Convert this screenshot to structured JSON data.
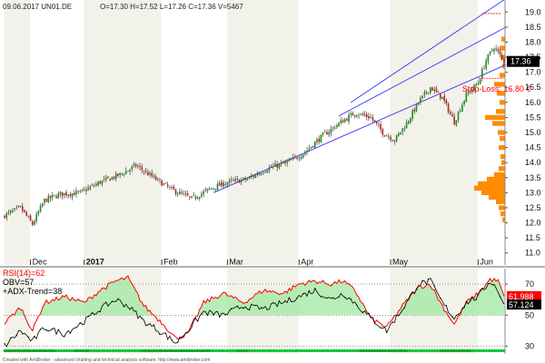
{
  "header": {
    "text": "09.06.2017 UN01.DE",
    "ohlc": "O=17.30  H=17.52  L=17.26  C=17.36  V=5467"
  },
  "footer": "Created with AmiBroker - advanced charting and technical analysis software. http://www.amibroker.com",
  "colors": {
    "up": "#1f8a1f",
    "down": "#c41e1e",
    "channel": "#3333ff",
    "stop": "#ff0000",
    "volume_profile": "#ff8c00",
    "rsi": "#ff0000",
    "obv": "#000000",
    "band_light": "#ffffff",
    "band_dark": "#f2f2ea",
    "last_price_bg": "#000000",
    "rsi_label_bg": "#ff0000",
    "obv_label_bg": "#000000"
  },
  "chart_data": [
    {
      "type": "candlestick",
      "title": "09.06.2017 UN01.DE",
      "x_labels": [
        "Dec",
        "2017",
        "Feb",
        "Mar",
        "Apr",
        "May",
        "Jun"
      ],
      "ylim": [
        10.6,
        19.4
      ],
      "y_ticks": [
        11.0,
        11.5,
        12.0,
        12.5,
        13.0,
        13.5,
        14.0,
        14.5,
        15.0,
        15.5,
        16.0,
        16.5,
        17.0,
        17.5,
        18.0,
        18.5,
        19.0
      ],
      "last_price": "17.36",
      "stop_loss_label": "Stop-Loss: 16.80 €",
      "stop_loss_value": 16.8,
      "resistance_level": 18.95,
      "close_anchors": [
        {
          "d": 0,
          "c": 12.25
        },
        {
          "d": 8,
          "c": 12.5
        },
        {
          "d": 14,
          "c": 11.95
        },
        {
          "d": 20,
          "c": 12.75
        },
        {
          "d": 28,
          "c": 12.95
        },
        {
          "d": 38,
          "c": 13.0
        },
        {
          "d": 48,
          "c": 13.35
        },
        {
          "d": 58,
          "c": 13.6
        },
        {
          "d": 66,
          "c": 13.9
        },
        {
          "d": 76,
          "c": 13.45
        },
        {
          "d": 84,
          "c": 13.1
        },
        {
          "d": 94,
          "c": 12.8
        },
        {
          "d": 104,
          "c": 13.15
        },
        {
          "d": 112,
          "c": 13.35
        },
        {
          "d": 122,
          "c": 13.45
        },
        {
          "d": 132,
          "c": 13.8
        },
        {
          "d": 142,
          "c": 14.0
        },
        {
          "d": 150,
          "c": 14.3
        },
        {
          "d": 160,
          "c": 14.9
        },
        {
          "d": 168,
          "c": 15.3
        },
        {
          "d": 176,
          "c": 15.65
        },
        {
          "d": 184,
          "c": 15.5
        },
        {
          "d": 190,
          "c": 15.0
        },
        {
          "d": 196,
          "c": 14.75
        },
        {
          "d": 202,
          "c": 15.3
        },
        {
          "d": 208,
          "c": 16.0
        },
        {
          "d": 214,
          "c": 16.5
        },
        {
          "d": 220,
          "c": 16.15
        },
        {
          "d": 226,
          "c": 15.35
        },
        {
          "d": 232,
          "c": 16.25
        },
        {
          "d": 238,
          "c": 16.65
        },
        {
          "d": 242,
          "c": 17.4
        },
        {
          "d": 246,
          "c": 17.85
        },
        {
          "d": 251,
          "c": 17.36
        }
      ],
      "volume_profile": [
        {
          "p": 18.1,
          "w": 4
        },
        {
          "p": 17.8,
          "w": 6
        },
        {
          "p": 17.5,
          "w": 5
        },
        {
          "p": 17.2,
          "w": 3
        },
        {
          "p": 16.9,
          "w": 6
        },
        {
          "p": 16.6,
          "w": 12
        },
        {
          "p": 16.3,
          "w": 9
        },
        {
          "p": 16.0,
          "w": 6
        },
        {
          "p": 15.7,
          "w": 10
        },
        {
          "p": 15.5,
          "w": 22
        },
        {
          "p": 15.3,
          "w": 14
        },
        {
          "p": 15.0,
          "w": 8
        },
        {
          "p": 14.8,
          "w": 6
        },
        {
          "p": 14.5,
          "w": 7
        },
        {
          "p": 14.2,
          "w": 5
        },
        {
          "p": 14.0,
          "w": 4
        },
        {
          "p": 13.8,
          "w": 7
        },
        {
          "p": 13.6,
          "w": 12
        },
        {
          "p": 13.45,
          "w": 20
        },
        {
          "p": 13.3,
          "w": 30
        },
        {
          "p": 13.15,
          "w": 34
        },
        {
          "p": 13.0,
          "w": 26
        },
        {
          "p": 12.85,
          "w": 18
        },
        {
          "p": 12.7,
          "w": 10
        },
        {
          "p": 12.5,
          "w": 7
        },
        {
          "p": 12.3,
          "w": 5
        },
        {
          "p": 12.1,
          "w": 3
        }
      ],
      "channel": [
        {
          "d0": 105,
          "p0": 13.0,
          "d1": 252,
          "p1": 17.25
        },
        {
          "d0": 168,
          "p0": 15.55,
          "d1": 252,
          "p1": 18.5
        },
        {
          "d0": 174,
          "p0": 16.0,
          "d1": 252,
          "p1": 19.45
        }
      ]
    },
    {
      "type": "line",
      "series": [
        {
          "name": "RSI(14)",
          "label": "RSI(14)=62"
        },
        {
          "name": "OBV",
          "label": "OBV=57"
        },
        {
          "name": "+ADX-Trend",
          "label": "+ADX-Trend=38"
        }
      ],
      "ylim": [
        25,
        80
      ],
      "y_ticks": [
        30,
        50,
        70
      ],
      "rsi_last": "61.988",
      "obv_last": "57.124",
      "rsi_anchors": [
        {
          "d": 0,
          "v": 45
        },
        {
          "d": 8,
          "v": 55
        },
        {
          "d": 14,
          "v": 40
        },
        {
          "d": 20,
          "v": 58
        },
        {
          "d": 30,
          "v": 62
        },
        {
          "d": 40,
          "v": 58
        },
        {
          "d": 48,
          "v": 66
        },
        {
          "d": 56,
          "v": 72
        },
        {
          "d": 62,
          "v": 74
        },
        {
          "d": 70,
          "v": 56
        },
        {
          "d": 80,
          "v": 44
        },
        {
          "d": 86,
          "v": 35
        },
        {
          "d": 92,
          "v": 38
        },
        {
          "d": 100,
          "v": 58
        },
        {
          "d": 110,
          "v": 64
        },
        {
          "d": 120,
          "v": 58
        },
        {
          "d": 130,
          "v": 66
        },
        {
          "d": 140,
          "v": 64
        },
        {
          "d": 148,
          "v": 70
        },
        {
          "d": 156,
          "v": 72
        },
        {
          "d": 164,
          "v": 70
        },
        {
          "d": 170,
          "v": 72
        },
        {
          "d": 176,
          "v": 66
        },
        {
          "d": 184,
          "v": 48
        },
        {
          "d": 192,
          "v": 42
        },
        {
          "d": 200,
          "v": 56
        },
        {
          "d": 208,
          "v": 68
        },
        {
          "d": 214,
          "v": 70
        },
        {
          "d": 220,
          "v": 56
        },
        {
          "d": 226,
          "v": 44
        },
        {
          "d": 232,
          "v": 58
        },
        {
          "d": 238,
          "v": 64
        },
        {
          "d": 244,
          "v": 73
        },
        {
          "d": 248,
          "v": 72
        },
        {
          "d": 251,
          "v": 62
        }
      ],
      "obv_anchors": [
        {
          "d": 0,
          "v": 30
        },
        {
          "d": 8,
          "v": 40
        },
        {
          "d": 14,
          "v": 33
        },
        {
          "d": 20,
          "v": 42
        },
        {
          "d": 30,
          "v": 38
        },
        {
          "d": 40,
          "v": 46
        },
        {
          "d": 48,
          "v": 54
        },
        {
          "d": 56,
          "v": 60
        },
        {
          "d": 62,
          "v": 56
        },
        {
          "d": 70,
          "v": 46
        },
        {
          "d": 80,
          "v": 38
        },
        {
          "d": 86,
          "v": 32
        },
        {
          "d": 92,
          "v": 40
        },
        {
          "d": 100,
          "v": 52
        },
        {
          "d": 110,
          "v": 50
        },
        {
          "d": 120,
          "v": 56
        },
        {
          "d": 130,
          "v": 54
        },
        {
          "d": 140,
          "v": 58
        },
        {
          "d": 148,
          "v": 62
        },
        {
          "d": 156,
          "v": 66
        },
        {
          "d": 164,
          "v": 60
        },
        {
          "d": 170,
          "v": 64
        },
        {
          "d": 176,
          "v": 58
        },
        {
          "d": 184,
          "v": 48
        },
        {
          "d": 192,
          "v": 40
        },
        {
          "d": 200,
          "v": 54
        },
        {
          "d": 208,
          "v": 70
        },
        {
          "d": 214,
          "v": 72
        },
        {
          "d": 220,
          "v": 58
        },
        {
          "d": 226,
          "v": 48
        },
        {
          "d": 232,
          "v": 58
        },
        {
          "d": 238,
          "v": 62
        },
        {
          "d": 244,
          "v": 72
        },
        {
          "d": 248,
          "v": 66
        },
        {
          "d": 251,
          "v": 57
        }
      ]
    }
  ]
}
